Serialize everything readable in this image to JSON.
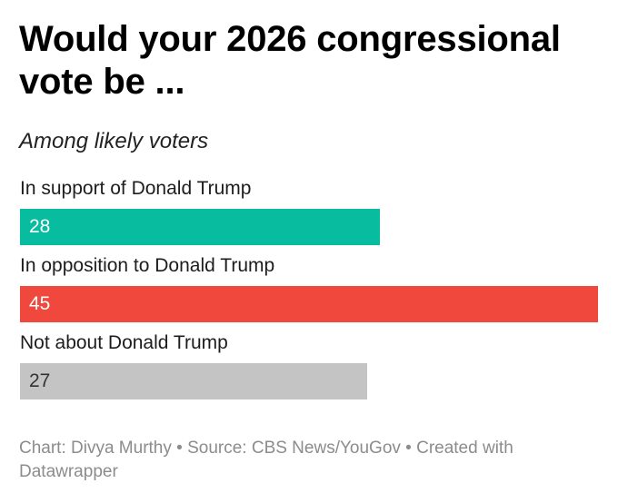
{
  "title": "Would your 2026 congressional vote be ...",
  "subtitle": "Among likely voters",
  "footer": "Chart: Divya Murthy • Source: CBS News/YouGov • Created with Datawrapper",
  "chart_data": {
    "type": "bar",
    "orientation": "horizontal",
    "title": "Would your 2026 congressional vote be ...",
    "subtitle": "Among likely voters",
    "categories": [
      "In support of Donald Trump",
      "In opposition to Donald Trump",
      "Not about Donald Trump"
    ],
    "values": [
      28,
      45,
      27
    ],
    "colors": [
      "#08bca0",
      "#f0483c",
      "#c4c4c4"
    ],
    "value_label_colors": [
      "#ffffff",
      "#ffffff",
      "#333333"
    ],
    "xlim": [
      0,
      45
    ],
    "grid": false,
    "legend": "none"
  }
}
